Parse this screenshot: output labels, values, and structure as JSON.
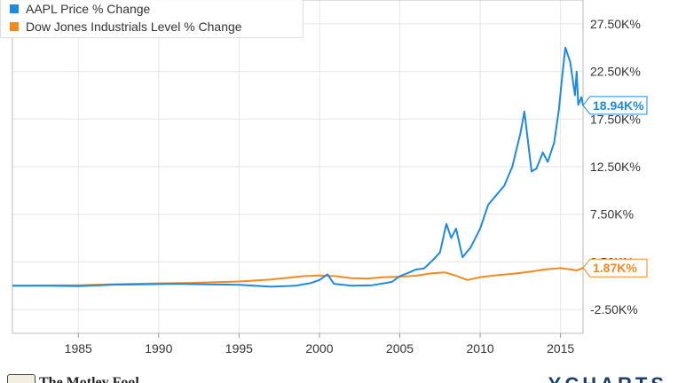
{
  "chart_data": {
    "type": "line",
    "xlim": [
      1980.9,
      2016.4
    ],
    "ylim": [
      -5000,
      30000
    ],
    "x_ticks": [
      1985,
      1990,
      1995,
      2000,
      2005,
      2010,
      2015
    ],
    "x_tick_labels": [
      "1985",
      "1990",
      "1995",
      "2000",
      "2005",
      "2010",
      "2015"
    ],
    "y_ticks": [
      -2500,
      2500,
      7500,
      12500,
      17500,
      22500,
      27500
    ],
    "y_tick_labels": [
      "-2.50K%",
      "2.50K%",
      "7.50K%",
      "12.50K%",
      "17.50K%",
      "22.50K%",
      "27.50K%"
    ],
    "grid": true,
    "legend_position": "top-left",
    "series": [
      {
        "name": "AAPL Price % Change",
        "color": "#1f8ae0",
        "last_value_label": "18.94K%",
        "points": [
          [
            1980.9,
            0
          ],
          [
            1983,
            0
          ],
          [
            1985,
            -50
          ],
          [
            1987,
            100
          ],
          [
            1989,
            150
          ],
          [
            1991,
            200
          ],
          [
            1993,
            150
          ],
          [
            1995,
            100
          ],
          [
            1997,
            -100
          ],
          [
            1998.5,
            0
          ],
          [
            1999.5,
            300
          ],
          [
            2000.0,
            600
          ],
          [
            2000.5,
            1200
          ],
          [
            2000.9,
            200
          ],
          [
            2002,
            0
          ],
          [
            2003.3,
            50
          ],
          [
            2004.5,
            400
          ],
          [
            2005,
            1000
          ],
          [
            2005.6,
            1400
          ],
          [
            2006,
            1700
          ],
          [
            2006.5,
            1800
          ],
          [
            2007,
            2600
          ],
          [
            2007.5,
            3500
          ],
          [
            2007.9,
            6500
          ],
          [
            2008.2,
            5000
          ],
          [
            2008.5,
            6000
          ],
          [
            2008.9,
            3000
          ],
          [
            2009.4,
            4000
          ],
          [
            2010,
            6000
          ],
          [
            2010.5,
            8500
          ],
          [
            2011,
            9500
          ],
          [
            2011.5,
            10500
          ],
          [
            2012,
            12500
          ],
          [
            2012.5,
            16000
          ],
          [
            2012.75,
            18300
          ],
          [
            2013.2,
            12000
          ],
          [
            2013.5,
            12300
          ],
          [
            2013.9,
            14000
          ],
          [
            2014.2,
            13000
          ],
          [
            2014.6,
            15000
          ],
          [
            2014.9,
            18500
          ],
          [
            2015.1,
            22000
          ],
          [
            2015.3,
            25000
          ],
          [
            2015.6,
            23500
          ],
          [
            2015.9,
            20000
          ],
          [
            2016.0,
            22500
          ],
          [
            2016.1,
            19000
          ],
          [
            2016.3,
            19800
          ],
          [
            2016.4,
            18940
          ]
        ]
      },
      {
        "name": "Dow Jones Industrials Level % Change",
        "color": "#f5891f",
        "last_value_label": "1.87K%",
        "points": [
          [
            1980.9,
            0
          ],
          [
            1985,
            50
          ],
          [
            1987,
            150
          ],
          [
            1990,
            250
          ],
          [
            1992,
            300
          ],
          [
            1995,
            450
          ],
          [
            1997,
            650
          ],
          [
            1999,
            1000
          ],
          [
            2000,
            1080
          ],
          [
            2001,
            1000
          ],
          [
            2002,
            800
          ],
          [
            2003,
            750
          ],
          [
            2004,
            900
          ],
          [
            2005,
            950
          ],
          [
            2006,
            1050
          ],
          [
            2007,
            1300
          ],
          [
            2007.8,
            1400
          ],
          [
            2008.5,
            1050
          ],
          [
            2009.2,
            600
          ],
          [
            2010,
            900
          ],
          [
            2011,
            1100
          ],
          [
            2012,
            1250
          ],
          [
            2013,
            1450
          ],
          [
            2014,
            1700
          ],
          [
            2015,
            1850
          ],
          [
            2015.7,
            1700
          ],
          [
            2016,
            1600
          ],
          [
            2016.4,
            1870
          ]
        ]
      }
    ]
  },
  "footer": {
    "brand": "The Motley Fool",
    "source": "YCHARTS"
  }
}
